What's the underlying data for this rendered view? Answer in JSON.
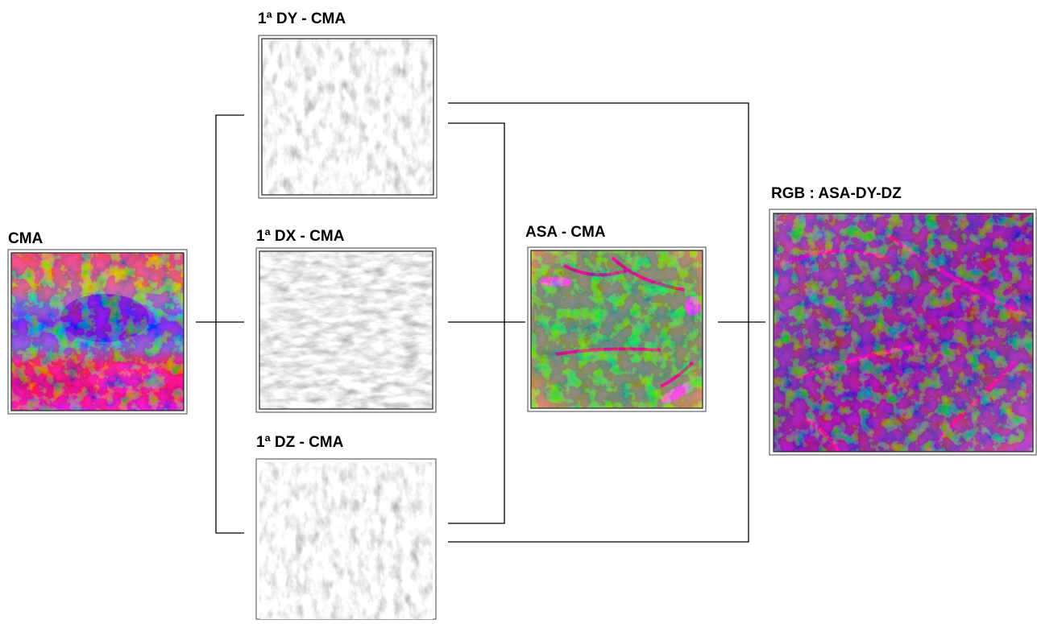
{
  "nodes": [
    {
      "label": "CMA"
    },
    {
      "label": "1ª DY - CMA"
    },
    {
      "label": "1ª DX - CMA"
    },
    {
      "label": "1ª DZ - CMA"
    },
    {
      "label": "ASA - CMA"
    },
    {
      "label": "RGB : ASA-DY-DZ"
    }
  ]
}
